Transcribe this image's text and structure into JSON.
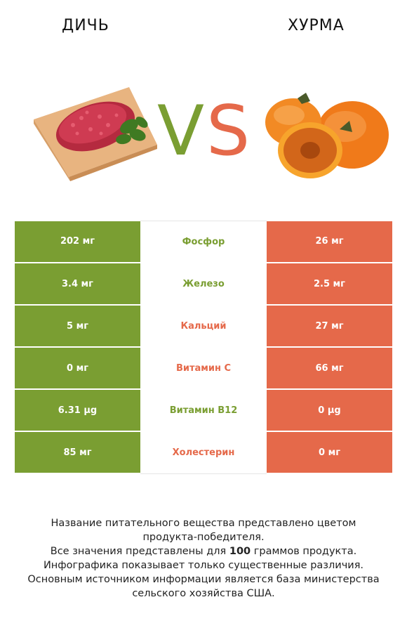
{
  "titles": {
    "left": "ДИЧЬ",
    "right": "ХУРМА"
  },
  "vs": {
    "v": "V",
    "s": "S"
  },
  "colors": {
    "left": "#7a9e32",
    "right": "#e5694a"
  },
  "rows": [
    {
      "left": "202 мг",
      "nutrient": "Фосфор",
      "right": "26 мг",
      "winner": "left"
    },
    {
      "left": "3.4 мг",
      "nutrient": "Железо",
      "right": "2.5 мг",
      "winner": "left"
    },
    {
      "left": "5 мг",
      "nutrient": "Кальций",
      "right": "27 мг",
      "winner": "right"
    },
    {
      "left": "0 мг",
      "nutrient": "Витамин C",
      "right": "66 мг",
      "winner": "right"
    },
    {
      "left": "6.31 µg",
      "nutrient": "Витамин B12",
      "right": "0 µg",
      "winner": "left"
    },
    {
      "left": "85 мг",
      "nutrient": "Холестерин",
      "right": "0 мг",
      "winner": "right"
    }
  ],
  "footer": {
    "line1": "Название питательного вещества представлено цветом",
    "line2": "продукта-победителя.",
    "line3_pre": "Все значения представлены для ",
    "line3_bold": "100",
    "line3_post": " граммов продукта.",
    "line4": "Инфографика показывает только существенные различия.",
    "line5": "Основным источником информации является база министерства",
    "line6": "сельского хозяйства США."
  }
}
